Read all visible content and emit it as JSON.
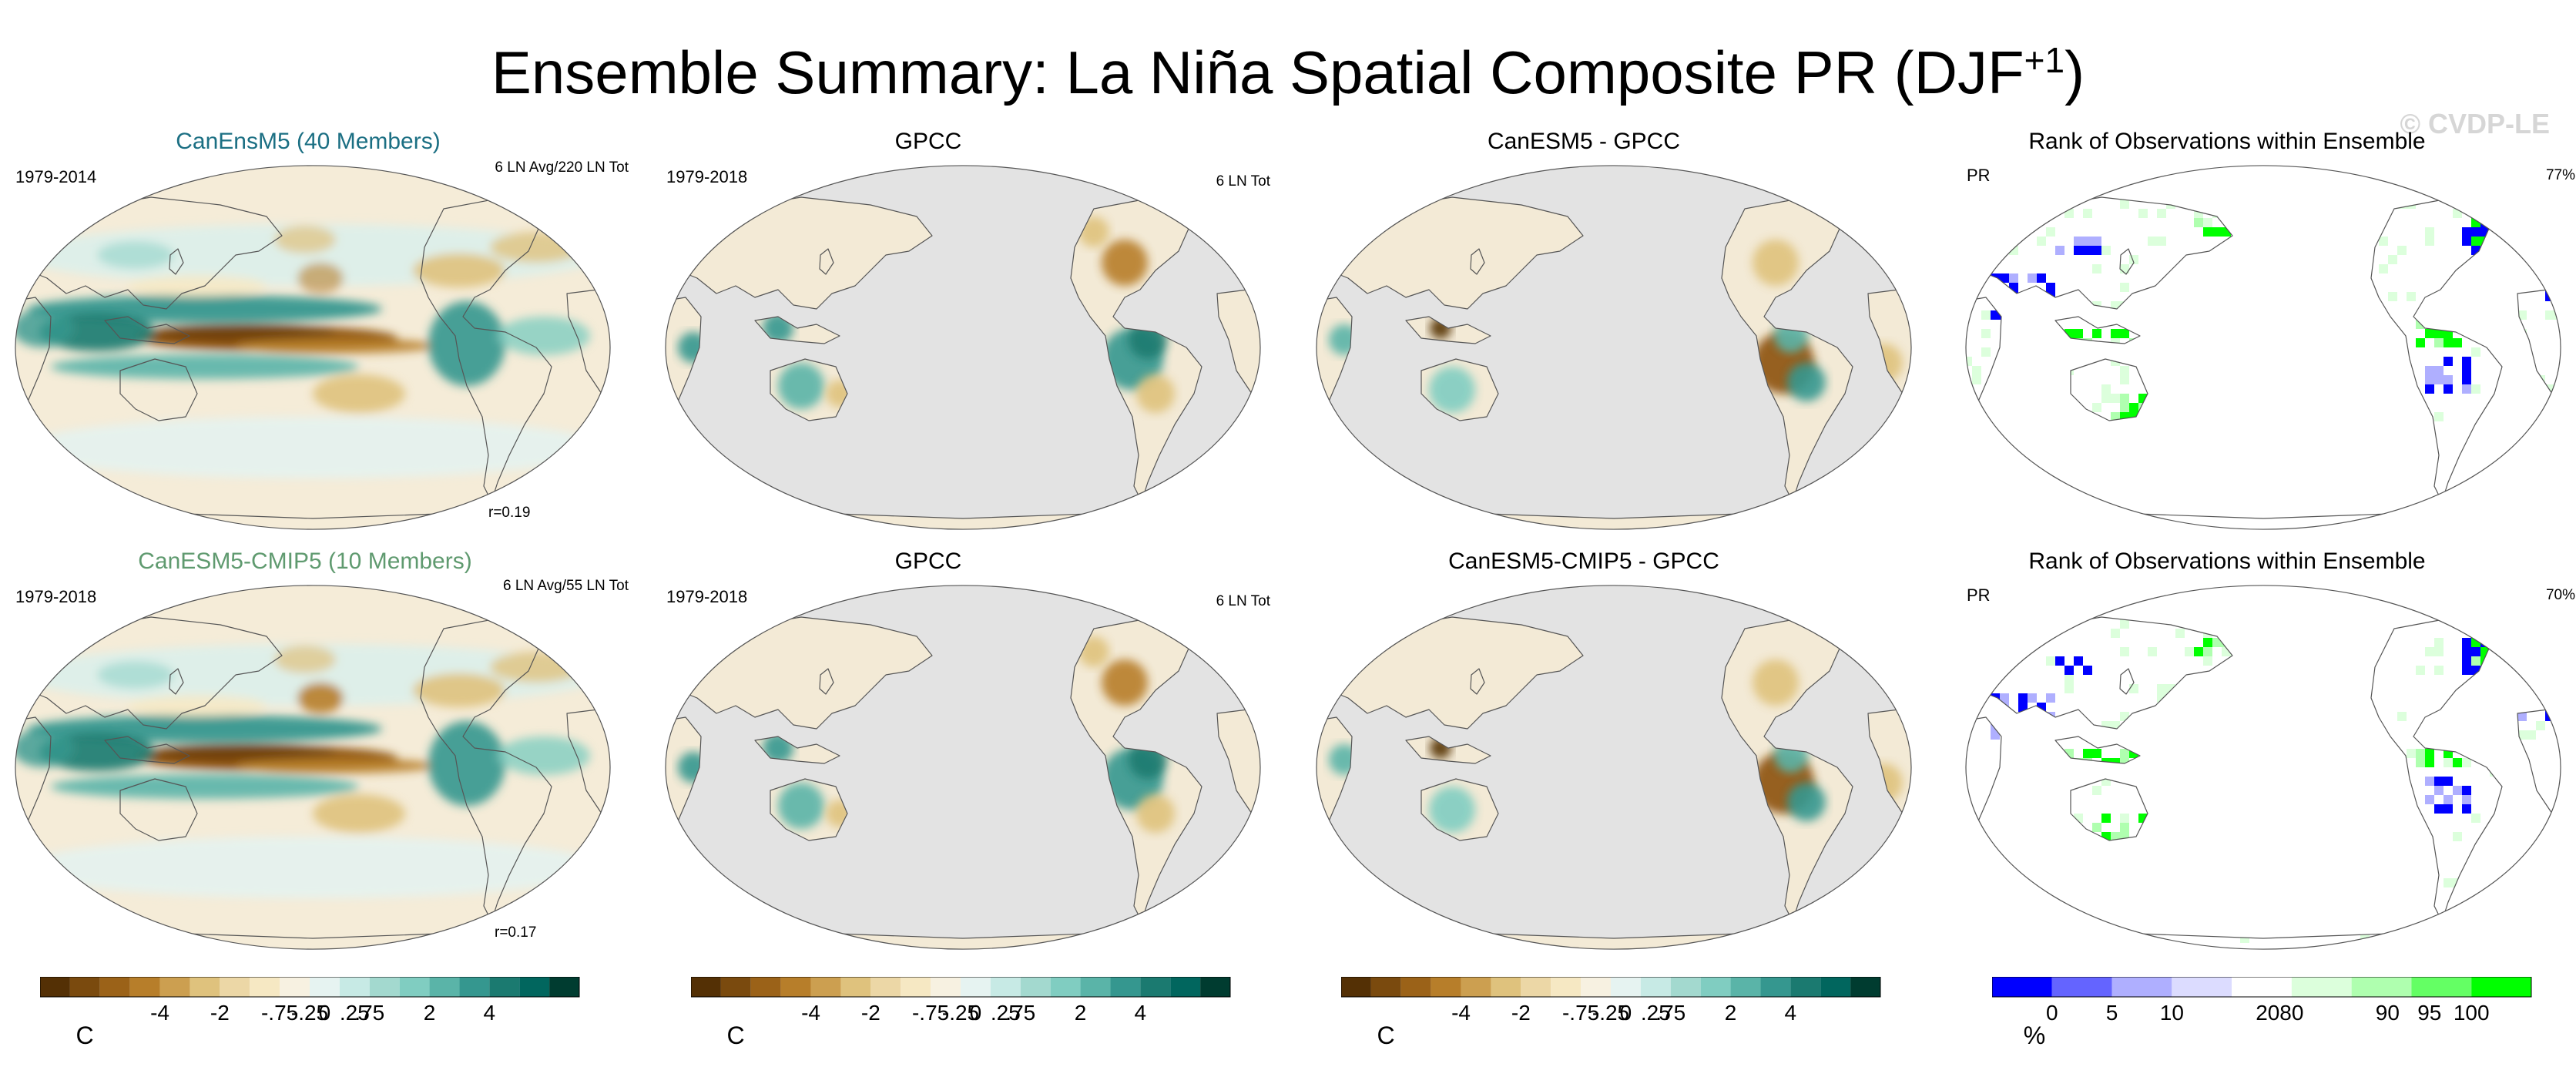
{
  "figure": {
    "title": "Ensemble Summary: La Niña Spatial Composite PR (DJF",
    "title_sup": "+1",
    "title_close": ")",
    "watermark": "© CVDP-LE"
  },
  "chart_data": [
    {
      "type": "heatmap",
      "panel": "row1-col1",
      "title": "CanEnsM5 (40 Members)",
      "title_color": "#1b6f83",
      "left_label": "1979-2014",
      "right_label": "6 LN Avg/220 LN Tot",
      "bottom_label": "r=0.19",
      "projection": "robinson",
      "variable": "PR composite"
    },
    {
      "type": "heatmap",
      "panel": "row1-col2",
      "title": "GPCC",
      "left_label": "1979-2018",
      "right_label": "6 LN Tot",
      "projection": "robinson",
      "ocean": "masked"
    },
    {
      "type": "heatmap",
      "panel": "row1-col3",
      "title": "CanESM5 - GPCC",
      "left_label": "",
      "right_label": "",
      "projection": "robinson",
      "ocean": "masked"
    },
    {
      "type": "heatmap",
      "panel": "row1-col4",
      "title": "Rank of Observations within Ensemble",
      "left_label": "PR",
      "right_label": "77%",
      "projection": "robinson"
    },
    {
      "type": "heatmap",
      "panel": "row2-col1",
      "title": "CanESM5-CMIP5 (10 Members)",
      "title_color": "#5f9a6f",
      "left_label": "1979-2018",
      "right_label": "6 LN Avg/55 LN Tot",
      "bottom_label": "r=0.17",
      "projection": "robinson"
    },
    {
      "type": "heatmap",
      "panel": "row2-col2",
      "title": "GPCC",
      "left_label": "1979-2018",
      "right_label": "6 LN Tot",
      "projection": "robinson",
      "ocean": "masked"
    },
    {
      "type": "heatmap",
      "panel": "row2-col3",
      "title": "CanESM5-CMIP5 - GPCC",
      "left_label": "",
      "right_label": "",
      "projection": "robinson",
      "ocean": "masked"
    },
    {
      "type": "heatmap",
      "panel": "row2-col4",
      "title": "Rank of Observations within Ensemble",
      "left_label": "PR",
      "right_label": "70%",
      "projection": "robinson"
    }
  ],
  "colorbars": {
    "diverging": {
      "unit": "C",
      "ticks": [
        "-4",
        "-2",
        "-.75",
        "-.25",
        "0",
        ".25",
        ".75",
        "2",
        "4"
      ],
      "colors": [
        "#543005",
        "#7a4a0e",
        "#9b6218",
        "#b77e2a",
        "#cc9f50",
        "#dfc27d",
        "#ecd7a6",
        "#f6e8c3",
        "#f7f1e1",
        "#e6f3f1",
        "#c7eae5",
        "#a3d9cf",
        "#80cdc1",
        "#5ab4a8",
        "#35978f",
        "#1b7a70",
        "#01665e",
        "#003c30"
      ]
    },
    "rank": {
      "unit": "%",
      "ticks": [
        "0",
        "5",
        "10",
        "20",
        "80",
        "90",
        "95",
        "100"
      ],
      "colors": [
        "#0000ff",
        "#6464ff",
        "#afafff",
        "#dcdcff",
        "#ffffff",
        "#dcffdc",
        "#afffaf",
        "#64ff64",
        "#00ff00"
      ]
    }
  },
  "colors": {
    "ocean_gray": "#e3e3e3",
    "brown_strong": "#8c510a",
    "teal_strong": "#1b7a70",
    "rank_blue": "#0000ff",
    "rank_green": "#00ff00"
  }
}
